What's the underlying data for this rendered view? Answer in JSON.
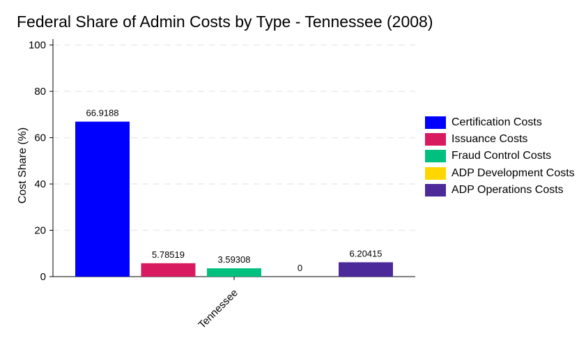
{
  "chart_data": {
    "type": "bar",
    "title": "Federal Share of Admin Costs by Type - Tennessee (2008)",
    "xlabel": "",
    "ylabel": "Cost Share (%)",
    "ylim": [
      0,
      105
    ],
    "yticks": [
      0,
      20,
      40,
      60,
      80,
      100
    ],
    "categories": [
      "Tennessee"
    ],
    "grid": true,
    "legend_position": "right",
    "series": [
      {
        "name": "Certification Costs",
        "values": [
          66.9188
        ],
        "label": "66.9188",
        "color": "#0000ff"
      },
      {
        "name": "Issuance Costs",
        "values": [
          5.78519
        ],
        "label": "5.78519",
        "color": "#d81b60"
      },
      {
        "name": "Fraud Control Costs",
        "values": [
          3.59308
        ],
        "label": "3.59308",
        "color": "#00c07f"
      },
      {
        "name": "ADP Development Costs",
        "values": [
          0
        ],
        "label": "0",
        "color": "#ffd600"
      },
      {
        "name": "ADP Operations Costs",
        "values": [
          6.20415
        ],
        "label": "6.20415",
        "color": "#4c2a9a"
      }
    ]
  }
}
